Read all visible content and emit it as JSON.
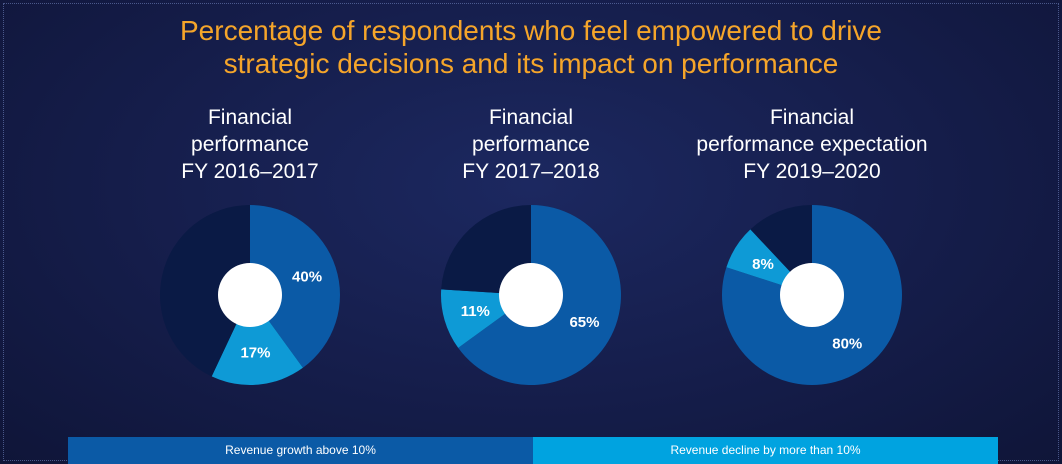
{
  "header": {
    "title_line1": "Percentage of respondents who feel empowered to drive",
    "title_line2": "strategic decisions and its impact on performance"
  },
  "colors": {
    "growth": "#0b5aa6",
    "decline": "#0e9ad6",
    "other": "#0a1a45",
    "hole": "#ffffff",
    "title": "#f5a52a",
    "legend_growth_bg": "#0b5aa6",
    "legend_decline_bg": "#00a3e0"
  },
  "legend": {
    "growth_label": "Revenue growth above 10%",
    "decline_label": "Revenue decline by more than 10%"
  },
  "chart_data": [
    {
      "type": "pie",
      "title_lines": [
        "Financial",
        "performance",
        "FY 2016–2017"
      ],
      "series": [
        {
          "name": "Revenue growth above 10%",
          "value": 40,
          "label": "40%"
        },
        {
          "name": "Revenue decline by more than 10%",
          "value": 17,
          "label": "17%"
        },
        {
          "value": 43,
          "label": ""
        }
      ]
    },
    {
      "type": "pie",
      "title_lines": [
        "Financial",
        "performance",
        "FY 2017–2018"
      ],
      "series": [
        {
          "name": "Revenue growth above 10%",
          "value": 65,
          "label": "65%"
        },
        {
          "name": "Revenue decline by more than 10%",
          "value": 11,
          "label": "11%"
        },
        {
          "value": 24,
          "label": ""
        }
      ]
    },
    {
      "type": "pie",
      "title_lines": [
        "Financial",
        "performance expectation",
        "FY 2019–2020"
      ],
      "series": [
        {
          "name": "Revenue growth above 10%",
          "value": 80,
          "label": "80%"
        },
        {
          "name": "Revenue decline by more than 10%",
          "value": 8,
          "label": "8%"
        },
        {
          "value": 12,
          "label": ""
        }
      ]
    }
  ]
}
